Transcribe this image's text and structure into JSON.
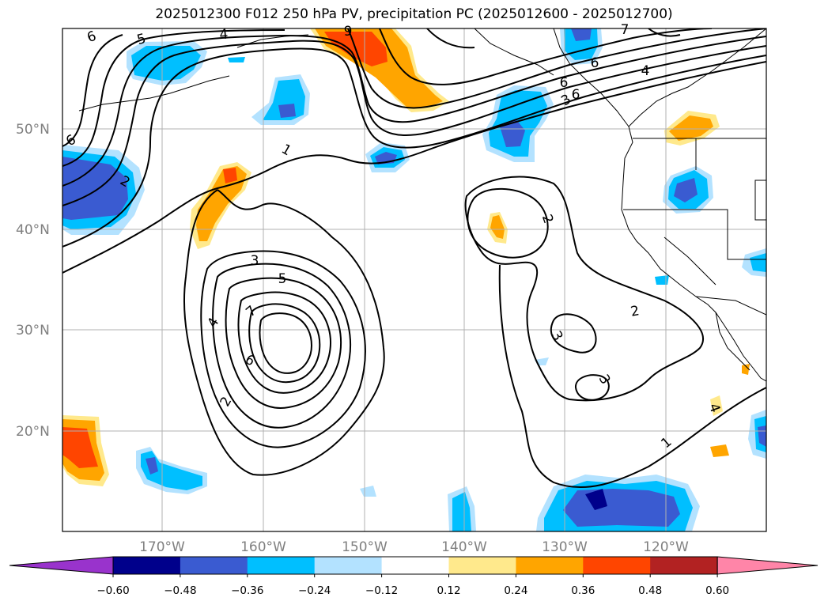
{
  "title": "2025012300 F012 250 hPa PV, precipitation PC (2025012600 - 2025012700)",
  "lat_ticks": [
    "20°N",
    "30°N",
    "40°N",
    "50°N"
  ],
  "lon_ticks": [
    "170°W",
    "160°W",
    "150°W",
    "140°W",
    "130°W",
    "120°W"
  ],
  "colorbar": {
    "ticks": [
      "−0.60",
      "−0.48",
      "−0.36",
      "−0.24",
      "−0.12",
      "0.12",
      "0.24",
      "0.36",
      "0.48",
      "0.60"
    ],
    "colors": [
      "#9933cc",
      "#00008b",
      "#3a5bd1",
      "#00bfff",
      "#b3e2ff",
      "#ffffff",
      "#ffe98c",
      "#ffa500",
      "#ff4500",
      "#b22222",
      "#ff85a8"
    ]
  },
  "contour_labels": [
    {
      "text": "6",
      "rot": -20
    },
    {
      "text": "5",
      "rot": -15
    },
    {
      "text": "4",
      "rot": -5
    },
    {
      "text": "9",
      "rot": 0
    },
    {
      "text": "7",
      "rot": 0
    },
    {
      "text": "6",
      "rot": 0
    },
    {
      "text": "4",
      "rot": 0
    },
    {
      "text": "6",
      "rot": -30
    },
    {
      "text": "2",
      "rot": 30
    },
    {
      "text": "1",
      "rot": 30
    },
    {
      "text": "3",
      "rot": 0
    },
    {
      "text": "5",
      "rot": 0
    },
    {
      "text": "7",
      "rot": -40
    },
    {
      "text": "4",
      "rot": -60
    },
    {
      "text": "6",
      "rot": 30
    },
    {
      "text": "2",
      "rot": -60
    },
    {
      "text": "2",
      "rot": 70
    },
    {
      "text": "3",
      "rot": 60
    },
    {
      "text": "3",
      "rot": 60
    },
    {
      "text": "2",
      "rot": -10
    },
    {
      "text": "1",
      "rot": -40
    },
    {
      "text": "4",
      "rot": 70
    },
    {
      "text": "6",
      "rot": 0
    },
    {
      "text": "3",
      "rot": -30
    },
    {
      "text": "6",
      "rot": 0
    }
  ]
}
